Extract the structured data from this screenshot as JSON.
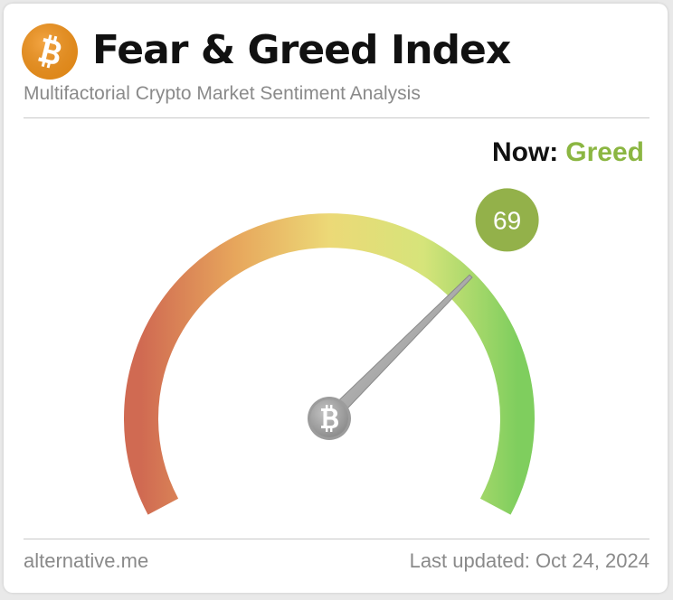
{
  "header": {
    "logo_icon": "bitcoin-logo-icon",
    "title": "Fear & Greed Index",
    "subtitle": "Multifactorial Crypto Market Sentiment Analysis"
  },
  "status": {
    "now_label": "Now:",
    "now_value": "Greed",
    "now_color": "#8bb642"
  },
  "gauge": {
    "value": 69,
    "value_label": "69",
    "min": 0,
    "max": 100,
    "badge_color": "#93b14a",
    "needle_icon": "bitcoin-hub-icon",
    "gradient_colors": [
      "#d06a52",
      "#e7a65c",
      "#ecd977",
      "#d6e47a",
      "#7fce5e"
    ]
  },
  "footer": {
    "source": "alternative.me",
    "last_updated": "Last updated: Oct 24, 2024"
  }
}
